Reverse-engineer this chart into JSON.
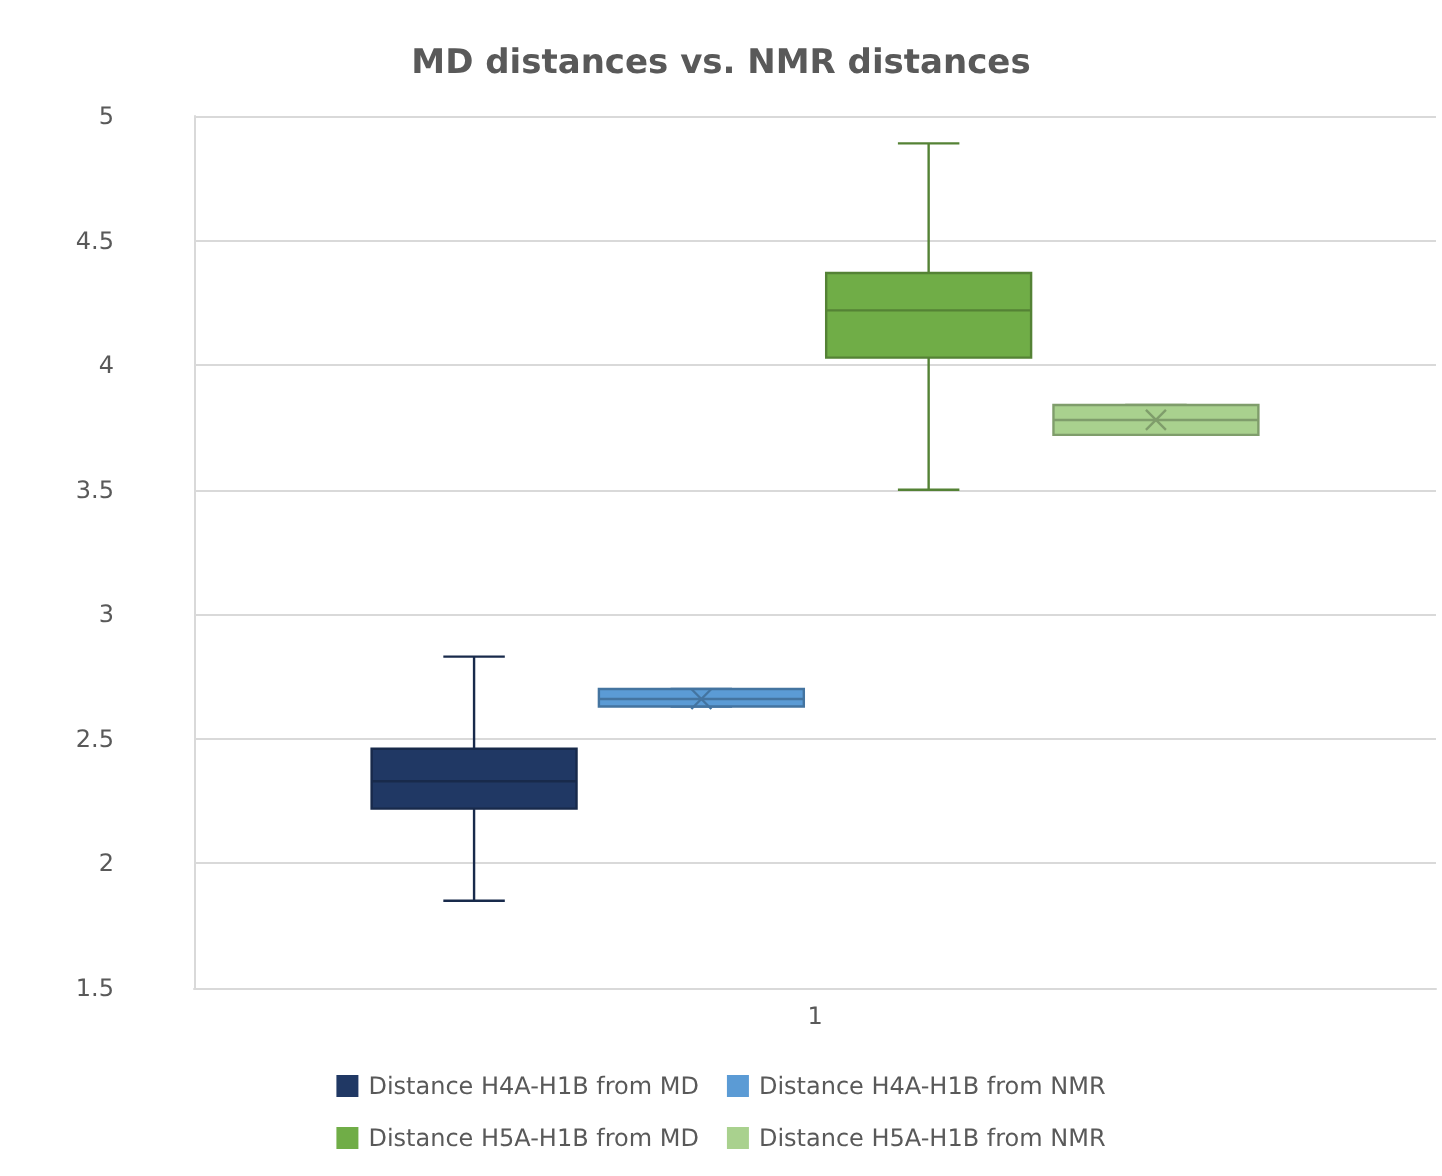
{
  "chart_data": {
    "type": "box",
    "title": "MD distances vs. NMR distances",
    "categories": [
      "1"
    ],
    "ylim": [
      1.5,
      5
    ],
    "yticks": [
      1.5,
      2,
      2.5,
      3,
      3.5,
      4,
      4.5,
      5
    ],
    "grid": "y",
    "legend": "bottom",
    "series": [
      {
        "name": "Distance H4A-H1B from MD",
        "color": "#203864",
        "boxes": [
          {
            "low": 1.85,
            "q1": 2.22,
            "median": 2.33,
            "q3": 2.46,
            "high": 2.83
          }
        ]
      },
      {
        "name": "Distance H4A-H1B from NMR",
        "color": "#5b9bd5",
        "boxes": [
          {
            "low": 2.63,
            "q1": 2.63,
            "median": 2.66,
            "q3": 2.7,
            "high": 2.7,
            "mean": 2.66
          }
        ]
      },
      {
        "name": "Distance H5A-H1B from MD",
        "color": "#70ad47",
        "boxes": [
          {
            "low": 3.5,
            "q1": 4.03,
            "median": 4.22,
            "q3": 4.37,
            "high": 4.89
          }
        ]
      },
      {
        "name": "Distance H5A-H1B from NMR",
        "color": "#a9d18e",
        "boxes": [
          {
            "low": 3.72,
            "q1": 3.72,
            "median": 3.78,
            "q3": 3.84,
            "high": 3.84,
            "mean": 3.78
          }
        ]
      }
    ]
  }
}
